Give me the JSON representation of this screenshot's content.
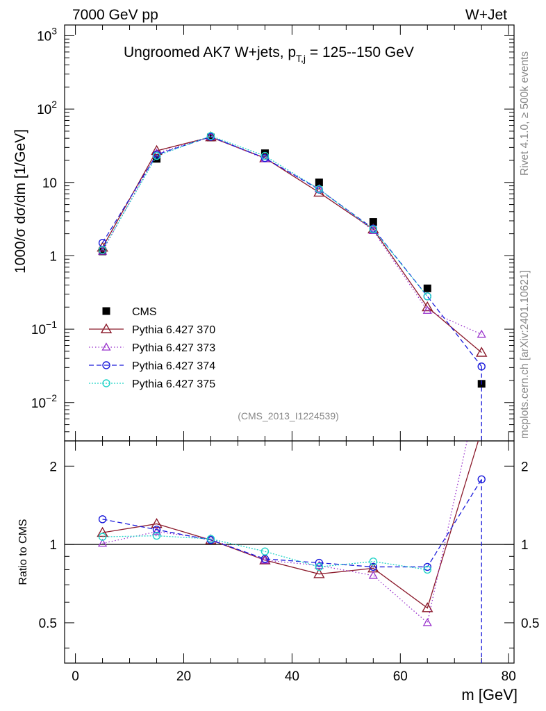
{
  "header": {
    "left": "7000 GeV pp",
    "right": "W+Jet"
  },
  "side_text": {
    "rivet": "Rivet 4.1.0, ≥ 500k events",
    "mcplots": "mcplots.cern.ch [arXiv:2401.10621]"
  },
  "analysis_id": "(CMS_2013_I1224539)",
  "colors": {
    "cms": "#000000",
    "p370": "#8b1a2b",
    "p373": "#9932cc",
    "p374": "#1a1adb",
    "p375": "#22d3c8"
  },
  "chart_data": [
    {
      "type": "line",
      "title": "Ungroomed AK7 W+jets, p",
      "title_sub": "T,j",
      "title_tail": " = 125--150 GeV",
      "ylabel": "1000/σ  dσ/dm [1/GeV]",
      "xlabel": "m [GeV]",
      "yscale": "log",
      "xlim": [
        -2,
        81
      ],
      "ylim": [
        0.003,
        1400
      ],
      "y_ticks": [
        {
          "value": 1000,
          "base": "10",
          "exp": "3"
        },
        {
          "value": 100,
          "base": "10",
          "exp": "2"
        },
        {
          "value": 10,
          "base": "10",
          "exp": ""
        },
        {
          "value": 1,
          "base": "1",
          "exp": ""
        },
        {
          "value": 0.1,
          "base": "10",
          "exp": "−1"
        },
        {
          "value": 0.01,
          "base": "10",
          "exp": "−2"
        }
      ],
      "x": [
        5,
        15,
        25,
        35,
        45,
        55,
        65,
        75
      ],
      "series": [
        {
          "name": "CMS",
          "key": "cms",
          "marker": "square",
          "values": [
            1.15,
            21.0,
            41.0,
            25.0,
            10.0,
            2.9,
            0.36,
            0.018
          ]
        },
        {
          "name": "Pythia 6.427 370",
          "key": "p370",
          "marker": "triangle",
          "dash": "",
          "values": [
            1.3,
            27.0,
            41.5,
            21.5,
            7.3,
            2.3,
            0.2,
            0.048
          ]
        },
        {
          "name": "Pythia 6.427 373",
          "key": "p373",
          "marker": "triangle-small",
          "dash": "1.5,3",
          "values": [
            1.15,
            25.0,
            42.0,
            21.0,
            8.2,
            2.2,
            0.18,
            0.085
          ]
        },
        {
          "name": "Pythia 6.427 374",
          "key": "p374",
          "marker": "circle",
          "dash": "7,4",
          "values": [
            1.5,
            24.0,
            42.0,
            21.5,
            8.0,
            2.35,
            0.28,
            0.031
          ]
        },
        {
          "name": "Pythia 6.427 375",
          "key": "p375",
          "marker": "circle",
          "dash": "2,2",
          "values": [
            1.2,
            23.0,
            43.0,
            23.0,
            8.1,
            2.3,
            0.28,
            null
          ]
        }
      ]
    },
    {
      "type": "line",
      "title": "",
      "ylabel": "Ratio to CMS",
      "xlabel": "m [GeV]",
      "xlim": [
        -2,
        81
      ],
      "ylim": [
        0.35,
        2.5
      ],
      "x_ticks": [
        0,
        20,
        40,
        60,
        80
      ],
      "y_ticks": [
        {
          "value": 0.5,
          "label": "0.5"
        },
        {
          "value": 1,
          "label": "1"
        },
        {
          "value": 2,
          "label": "2"
        }
      ],
      "x": [
        5,
        15,
        25,
        35,
        45,
        55,
        65,
        75
      ],
      "series": [
        {
          "name": "Pythia 6.427 370",
          "key": "p370",
          "marker": "triangle",
          "dash": "",
          "values": [
            1.11,
            1.2,
            1.04,
            0.87,
            0.77,
            0.81,
            0.57,
            2.75
          ]
        },
        {
          "name": "Pythia 6.427 373",
          "key": "p373",
          "marker": "triangle-small",
          "dash": "1.5,3",
          "values": [
            1.01,
            1.12,
            1.05,
            0.87,
            0.83,
            0.76,
            0.5,
            4.5
          ]
        },
        {
          "name": "Pythia 6.427 374",
          "key": "p374",
          "marker": "circle",
          "dash": "7,4",
          "values": [
            1.25,
            1.14,
            1.04,
            0.88,
            0.85,
            0.82,
            0.82,
            1.78
          ]
        },
        {
          "name": "Pythia 6.427 375",
          "key": "p375",
          "marker": "circle",
          "dash": "2,2",
          "values": [
            1.07,
            1.08,
            1.05,
            0.94,
            0.82,
            0.86,
            0.8,
            null
          ]
        }
      ]
    }
  ]
}
